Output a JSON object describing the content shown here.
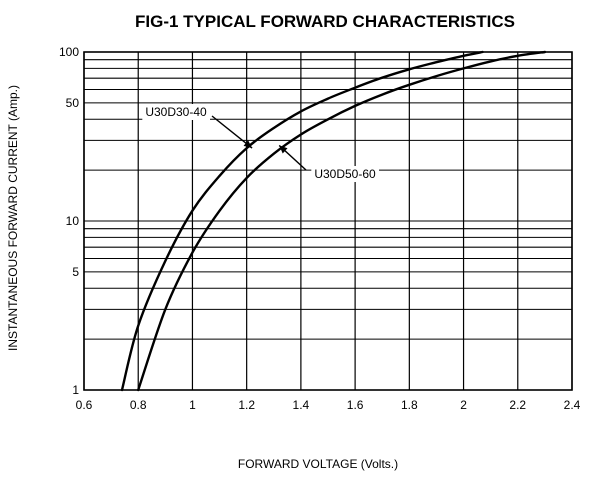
{
  "chart_data": {
    "type": "line",
    "title": "FIG-1 TYPICAL FORWARD CHARACTERISTICS",
    "xlabel": "FORWARD VOLTAGE (Volts.)",
    "ylabel": "INSTANTANEOUS FORWARD CURRENT (Amp.)",
    "xlim": [
      0.6,
      2.4
    ],
    "ylim": [
      1,
      100
    ],
    "y_scale": "log",
    "grid": true,
    "x_ticks": [
      0.6,
      0.8,
      1.0,
      1.2,
      1.4,
      1.6,
      1.8,
      2.0,
      2.2,
      2.4
    ],
    "x_tick_labels": [
      "0.6",
      "0.8",
      "1",
      "1.2",
      "1.4",
      "1.6",
      "1.8",
      "2",
      "2.2",
      "2.4"
    ],
    "y_ticks": [
      1,
      5,
      10,
      50,
      100
    ],
    "y_tick_labels": [
      "1",
      "5",
      "10",
      "50",
      "100"
    ],
    "y_minor_grid": [
      2,
      3,
      4,
      5,
      6,
      7,
      8,
      9,
      10,
      20,
      30,
      40,
      50,
      60,
      70,
      80,
      90
    ],
    "series": [
      {
        "name": "U30D30-40",
        "x": [
          0.74,
          0.8,
          0.9,
          1.0,
          1.1,
          1.2,
          1.3,
          1.4,
          1.5,
          1.6,
          1.7,
          1.8,
          1.9,
          2.0,
          2.07
        ],
        "y": [
          1.0,
          2.4,
          5.8,
          11.5,
          18.5,
          27,
          35.5,
          44.5,
          53,
          61.5,
          70.5,
          79,
          87,
          95,
          100
        ]
      },
      {
        "name": "U30D50-60",
        "x": [
          0.8,
          0.9,
          1.0,
          1.1,
          1.2,
          1.3,
          1.4,
          1.5,
          1.6,
          1.7,
          1.8,
          1.9,
          2.0,
          2.1,
          2.2,
          2.3
        ],
        "y": [
          1.0,
          3.0,
          6.5,
          11.5,
          18,
          25,
          32.5,
          40,
          48,
          56,
          64,
          72,
          80,
          88,
          95,
          100
        ]
      }
    ],
    "annotations": [
      {
        "text": "U30D30-40",
        "series": "U30D30-40",
        "points_to": [
          1.22,
          27
        ]
      },
      {
        "text": "U30D50-60",
        "series": "U30D50-60",
        "points_to": [
          1.32,
          28
        ]
      }
    ]
  }
}
